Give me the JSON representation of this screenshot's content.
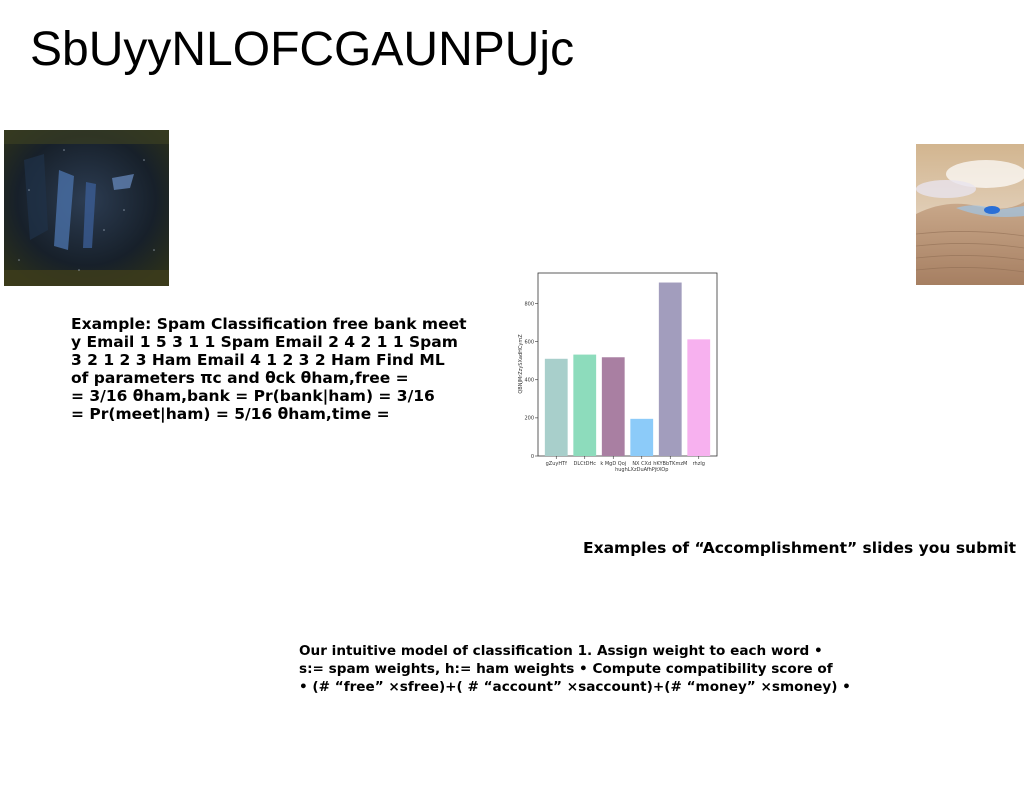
{
  "slide": {
    "title": "SbUyyNLOFCGAUNPUjc"
  },
  "example_text": {
    "lines": [
      "Example: Spam Classification free bank meet",
      "y Email 1 5 3 1 1 Spam Email 2 4 2 1 1 Spam",
      "3 2 1 2 3 Ham Email 4 1 2 3 2 Ham Find ML",
      "of parameters πc and θck θham,free =",
      "= 3/16 θham,bank = Pr(bank|ham) = 3/16",
      "= Pr(meet|ham) = 5/16 θham,time ="
    ]
  },
  "accomplishment_text": "Examples of “Accomplishment” slides you submit",
  "intuitive_text": {
    "lines": [
      "Our intuitive model of classification 1. Assign weight to each word •",
      "s:= spam weights, h:= ham weights • Compute compatibility score of",
      "• (# “free” ×sfree)+( # “account” ×saccount)+(# “money” ×smoney) •"
    ]
  },
  "chart_data": {
    "type": "bar",
    "categories": [
      "gZuyHTf",
      "DLCtDHc",
      "k MgD Qoj",
      "NX CXd\nhughLXzDuAfhPjtXOp",
      "hKYBbTKmzM",
      "rhzlg"
    ],
    "values": [
      510,
      532,
      518,
      195,
      910,
      612
    ],
    "colors": [
      "#a8cfcb",
      "#8ddcbc",
      "#a97fa2",
      "#8ccbf9",
      "#a29dbd",
      "#f7b1ef"
    ],
    "ylabel": "QBNJMrZzySXadHCymZ",
    "xlabel": "",
    "yticks": [
      0,
      200,
      400,
      600,
      800
    ],
    "ylim": [
      0,
      960
    ]
  }
}
